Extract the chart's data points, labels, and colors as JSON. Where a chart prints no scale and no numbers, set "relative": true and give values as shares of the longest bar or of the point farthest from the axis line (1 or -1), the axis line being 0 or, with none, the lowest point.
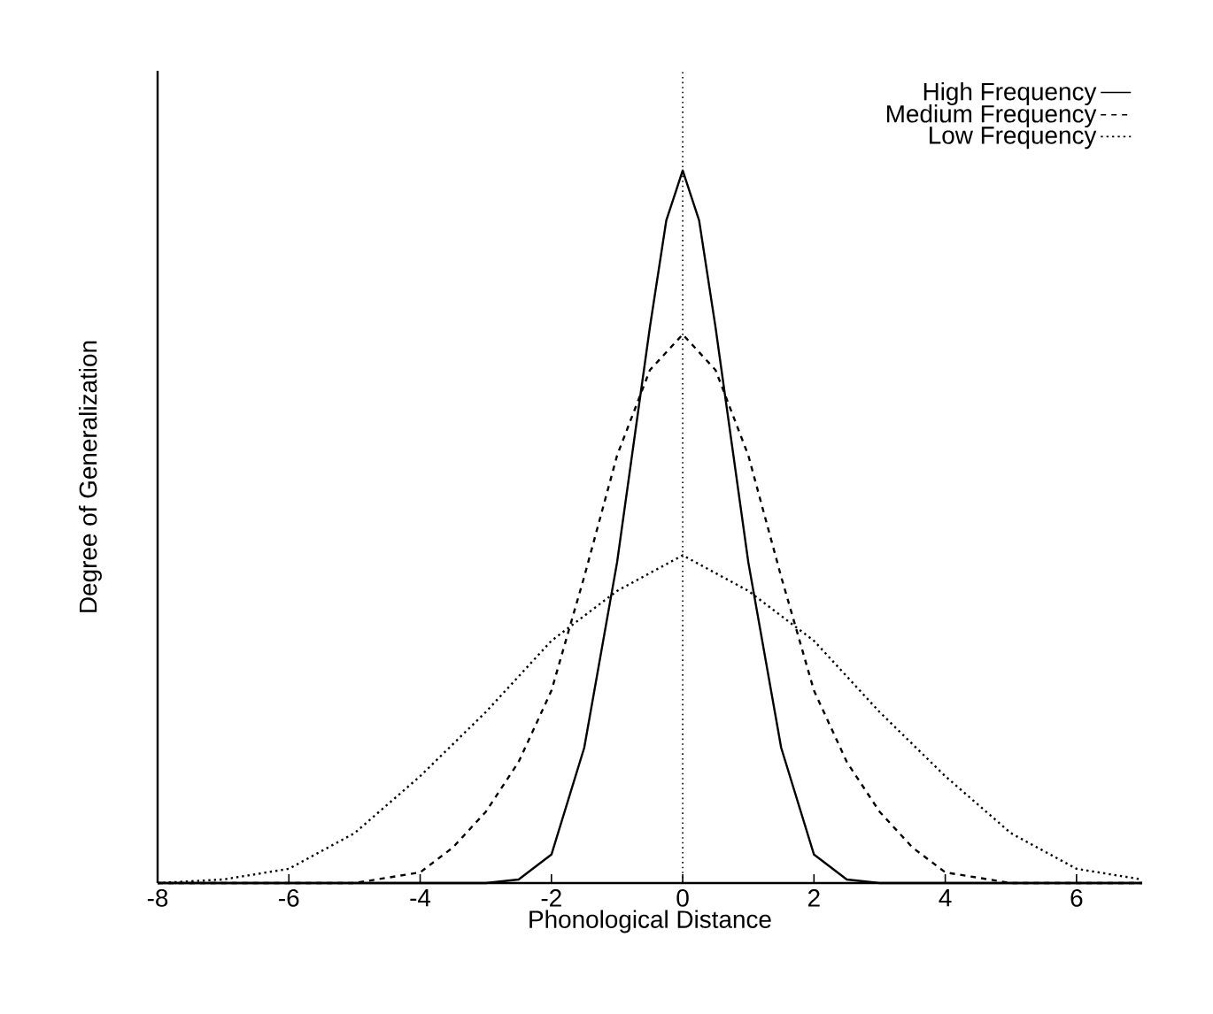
{
  "chart_data": {
    "type": "line",
    "xlabel": "Phonological Distance",
    "ylabel": "Degree of Generalization",
    "relative": true,
    "xlim": [
      -8,
      7
    ],
    "xticks": [
      -8,
      -6,
      -4,
      -2,
      0,
      2,
      4,
      6
    ],
    "grid": false,
    "legend": "top right",
    "marker": "none",
    "ref_lines": [
      {
        "axis": "x",
        "value": 0,
        "line_style": "dotted",
        "color": "#000000"
      }
    ],
    "series": [
      {
        "name": "High Frequency",
        "color": "#000000",
        "line_style": "solid",
        "x": [
          -8,
          -3,
          -2.5,
          -2,
          -1.5,
          -1,
          -0.5,
          -0.25,
          0,
          0.25,
          0.5,
          1,
          1.5,
          2,
          2.5,
          3,
          7
        ],
        "values": [
          0,
          0,
          0.005,
          0.04,
          0.19,
          0.45,
          0.78,
          0.93,
          1,
          0.93,
          0.78,
          0.45,
          0.19,
          0.04,
          0.005,
          0,
          0
        ]
      },
      {
        "name": "Medium Frequency",
        "color": "#000000",
        "line_style": "dashed",
        "x": [
          -8,
          -5,
          -4,
          -3.5,
          -3,
          -2.5,
          -2,
          -1.5,
          -1,
          -0.5,
          0,
          0.5,
          1,
          1.5,
          2,
          2.5,
          3,
          3.5,
          4,
          5,
          7
        ],
        "values": [
          0,
          0,
          0.015,
          0.05,
          0.1,
          0.17,
          0.27,
          0.43,
          0.6,
          0.72,
          0.77,
          0.72,
          0.6,
          0.43,
          0.27,
          0.17,
          0.1,
          0.05,
          0.015,
          0,
          0
        ]
      },
      {
        "name": "Low Frequency",
        "color": "#000000",
        "line_style": "dotted",
        "x": [
          -8,
          -7,
          -6,
          -5,
          -4,
          -3,
          -2,
          -1,
          0,
          1,
          2,
          3,
          4,
          5,
          6,
          7
        ],
        "values": [
          0,
          0.005,
          0.02,
          0.07,
          0.15,
          0.24,
          0.34,
          0.41,
          0.46,
          0.41,
          0.34,
          0.24,
          0.15,
          0.07,
          0.02,
          0.005
        ]
      }
    ]
  }
}
